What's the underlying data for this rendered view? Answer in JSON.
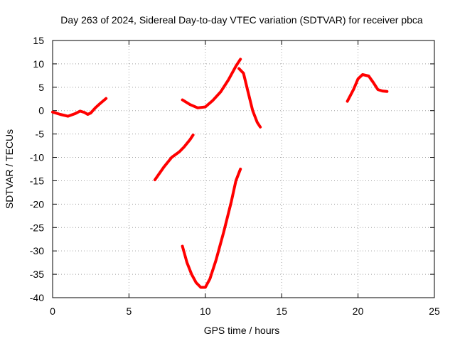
{
  "chart_data": {
    "type": "line",
    "title": "Day 263 of 2024, Sidereal Day-to-day VTEC variation (SDTVAR) for receiver pbca",
    "xlabel": "GPS time / hours",
    "ylabel": "SDTVAR / TECUs",
    "xlim": [
      0,
      25
    ],
    "ylim": [
      -40,
      15
    ],
    "xticks": [
      0,
      5,
      10,
      15,
      20,
      25
    ],
    "yticks": [
      15,
      10,
      5,
      0,
      -5,
      -10,
      -15,
      -20,
      -25,
      -30,
      -35,
      -40
    ],
    "grid": true,
    "legend": "none",
    "color": "#ff0000",
    "series": [
      {
        "x": [
          0.0,
          0.5,
          1.0,
          1.5,
          1.8,
          2.1,
          2.3,
          2.5,
          2.8,
          3.1,
          3.5
        ],
        "y": [
          -0.3,
          -0.8,
          -1.2,
          -0.6,
          -0.1,
          -0.4,
          -0.8,
          -0.5,
          0.6,
          1.5,
          2.6
        ]
      },
      {
        "x": [
          6.7,
          7.3,
          7.8,
          8.3,
          8.6,
          9.0,
          9.2
        ],
        "y": [
          -14.8,
          -12.0,
          -10.0,
          -8.8,
          -7.8,
          -6.2,
          -5.2
        ]
      },
      {
        "x": [
          8.5,
          9.0,
          9.5,
          10.0,
          10.5,
          11.0,
          11.5,
          12.0,
          12.3
        ],
        "y": [
          2.3,
          1.3,
          0.6,
          0.8,
          2.2,
          4.0,
          6.5,
          9.5,
          11.0
        ]
      },
      {
        "x": [
          12.2,
          12.5,
          12.8,
          13.1,
          13.4,
          13.6
        ],
        "y": [
          9.0,
          8.0,
          4.0,
          0.0,
          -2.5,
          -3.5
        ]
      },
      {
        "x": [
          8.5,
          8.8,
          9.1,
          9.4,
          9.7,
          10.0,
          10.3,
          10.7,
          11.2,
          11.7,
          12.0,
          12.3
        ],
        "y": [
          -29.0,
          -32.5,
          -35.0,
          -36.8,
          -37.8,
          -37.8,
          -36.0,
          -32.0,
          -26.0,
          -19.5,
          -15.0,
          -12.5
        ]
      },
      {
        "x": [
          19.3,
          19.7,
          20.0,
          20.3,
          20.7,
          21.0,
          21.3,
          21.6,
          21.9
        ],
        "y": [
          2.0,
          4.5,
          6.8,
          7.7,
          7.4,
          6.0,
          4.5,
          4.2,
          4.1
        ]
      }
    ]
  }
}
